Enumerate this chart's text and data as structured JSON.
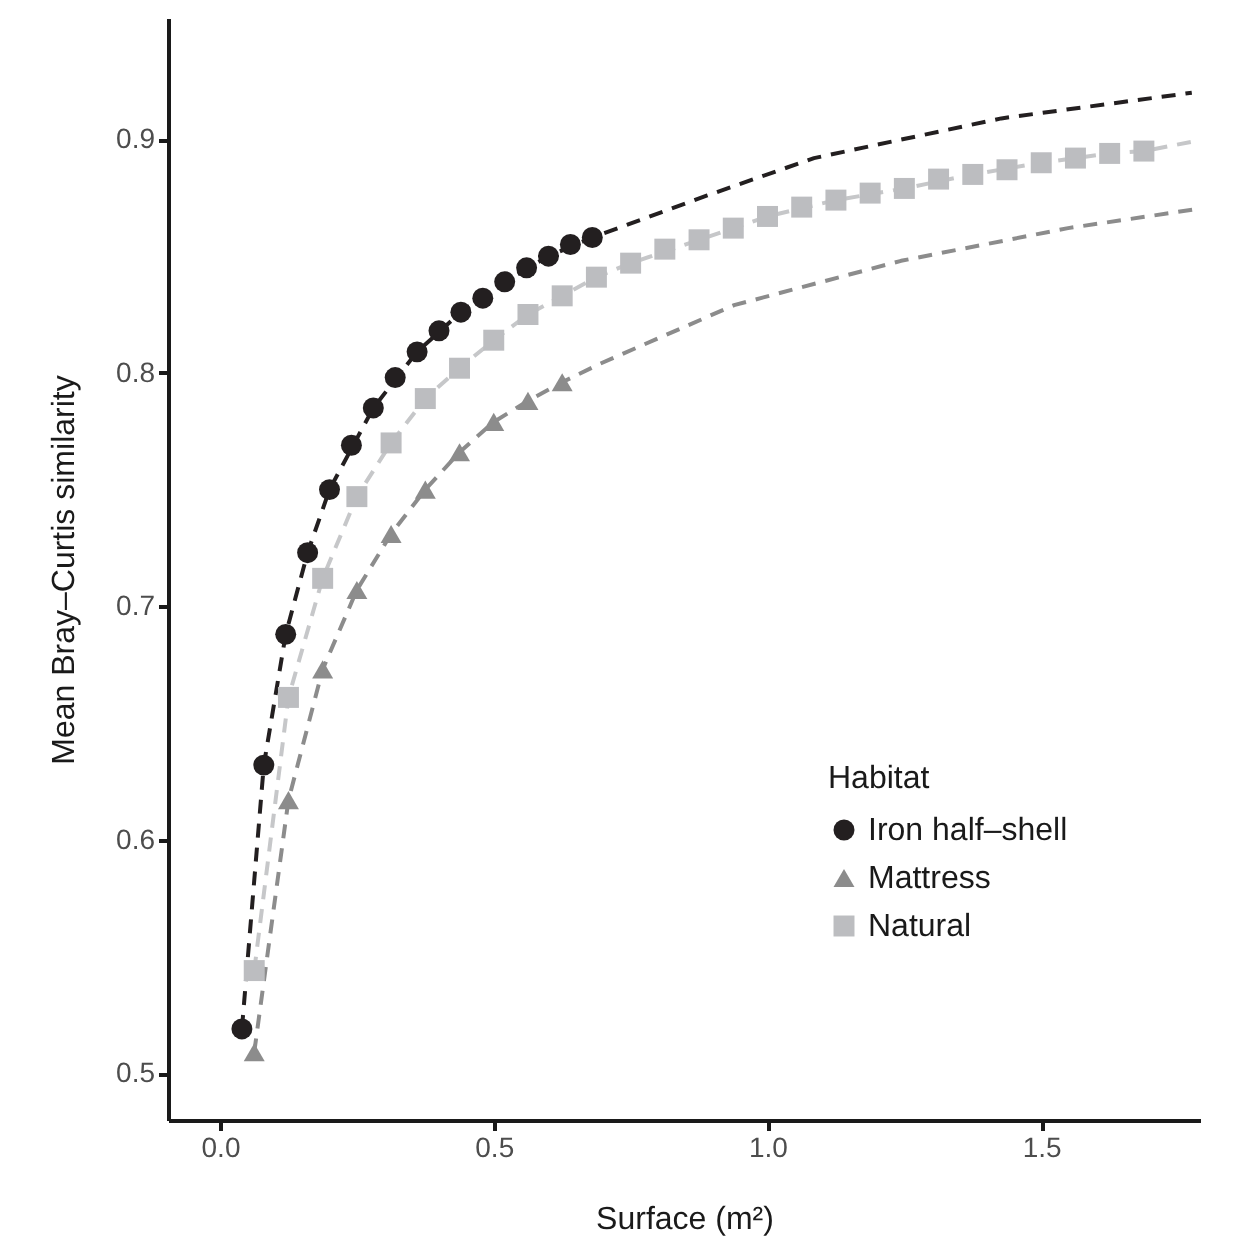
{
  "chart_data": {
    "type": "scatter",
    "xlabel": "Surface (m²)",
    "ylabel": "Mean Bray–Curtis similarity",
    "legend_title": "Habitat",
    "legend": "bottom right",
    "grid": false,
    "xlim": [
      -0.095,
      1.79
    ],
    "ylim": [
      0.48,
      0.952
    ],
    "xticks": [
      {
        "value": 0,
        "label": "0.0"
      },
      0.5,
      {
        "value": 1,
        "label": "1.0"
      },
      1.5
    ],
    "yticks": [
      0.5,
      0.6,
      0.7,
      0.8,
      0.9
    ],
    "series": [
      {
        "type": "line",
        "color": "#231f20",
        "line_style": "dashed",
        "marker": "none",
        "x": [
          0.04,
          0.08,
          0.12,
          0.16,
          0.2,
          0.28,
          0.36,
          0.44,
          0.52,
          0.6,
          0.68,
          0.89,
          1.085,
          1.427,
          1.775
        ],
        "values": [
          0.519,
          0.632,
          0.688,
          0.723,
          0.75,
          0.785,
          0.809,
          0.826,
          0.839,
          0.85,
          0.858,
          0.876,
          0.892,
          0.909,
          0.92
        ]
      },
      {
        "type": "line",
        "color": "#8c8c8c",
        "line_style": "dashed",
        "marker": "none",
        "x": [
          0.0625,
          0.125,
          0.1875,
          0.25,
          0.3125,
          0.375,
          0.4375,
          0.5,
          0.5625,
          0.625,
          0.695,
          0.939,
          1.244,
          1.549,
          1.78
        ],
        "values": [
          0.509,
          0.617,
          0.673,
          0.707,
          0.731,
          0.75,
          0.766,
          0.779,
          0.788,
          0.796,
          0.804,
          0.829,
          0.848,
          0.862,
          0.87
        ]
      },
      {
        "type": "line",
        "color": "#c6c7c9",
        "line_style": "dashed",
        "marker": "none",
        "x": [
          0.0625,
          0.125,
          0.1875,
          0.25,
          0.3125,
          0.375,
          0.4375,
          0.5,
          0.5625,
          0.625,
          0.6875,
          0.75,
          0.875,
          1.0,
          1.125,
          1.25,
          1.375,
          1.5,
          1.625,
          1.6875,
          1.775
        ],
        "values": [
          0.544,
          0.661,
          0.712,
          0.747,
          0.77,
          0.789,
          0.802,
          0.814,
          0.825,
          0.833,
          0.841,
          0.847,
          0.857,
          0.867,
          0.874,
          0.879,
          0.885,
          0.89,
          0.894,
          0.895,
          0.899
        ]
      },
      {
        "name": "Iron half‒shell",
        "color": "#231f20",
        "marker": "circle",
        "x": [
          0.04,
          0.08,
          0.12,
          0.16,
          0.2,
          0.24,
          0.28,
          0.32,
          0.36,
          0.4,
          0.44,
          0.48,
          0.52,
          0.56,
          0.6,
          0.64,
          0.68
        ],
        "values": [
          0.519,
          0.632,
          0.688,
          0.723,
          0.75,
          0.769,
          0.785,
          0.798,
          0.809,
          0.818,
          0.826,
          0.832,
          0.839,
          0.845,
          0.85,
          0.855,
          0.858
        ]
      },
      {
        "name": "Mattress",
        "color": "#8c8c8c",
        "marker": "triangle",
        "x": [
          0.0625,
          0.125,
          0.1875,
          0.25,
          0.3125,
          0.375,
          0.4375,
          0.5,
          0.5625,
          0.625
        ],
        "values": [
          0.509,
          0.617,
          0.673,
          0.707,
          0.731,
          0.75,
          0.766,
          0.779,
          0.788,
          0.796
        ]
      },
      {
        "name": "Natural",
        "color": "#bcbdc0",
        "marker": "square",
        "x": [
          0.0625,
          0.125,
          0.1875,
          0.25,
          0.3125,
          0.375,
          0.4375,
          0.5,
          0.5625,
          0.625,
          0.6875,
          0.75,
          0.8125,
          0.875,
          0.9375,
          1.0,
          1.0625,
          1.125,
          1.1875,
          1.25,
          1.3125,
          1.375,
          1.4375,
          1.5,
          1.5625,
          1.625,
          1.6875
        ],
        "values": [
          0.544,
          0.661,
          0.712,
          0.747,
          0.77,
          0.789,
          0.802,
          0.814,
          0.825,
          0.833,
          0.841,
          0.847,
          0.853,
          0.857,
          0.862,
          0.867,
          0.871,
          0.874,
          0.877,
          0.879,
          0.883,
          0.885,
          0.887,
          0.89,
          0.892,
          0.894,
          0.895
        ]
      }
    ]
  }
}
